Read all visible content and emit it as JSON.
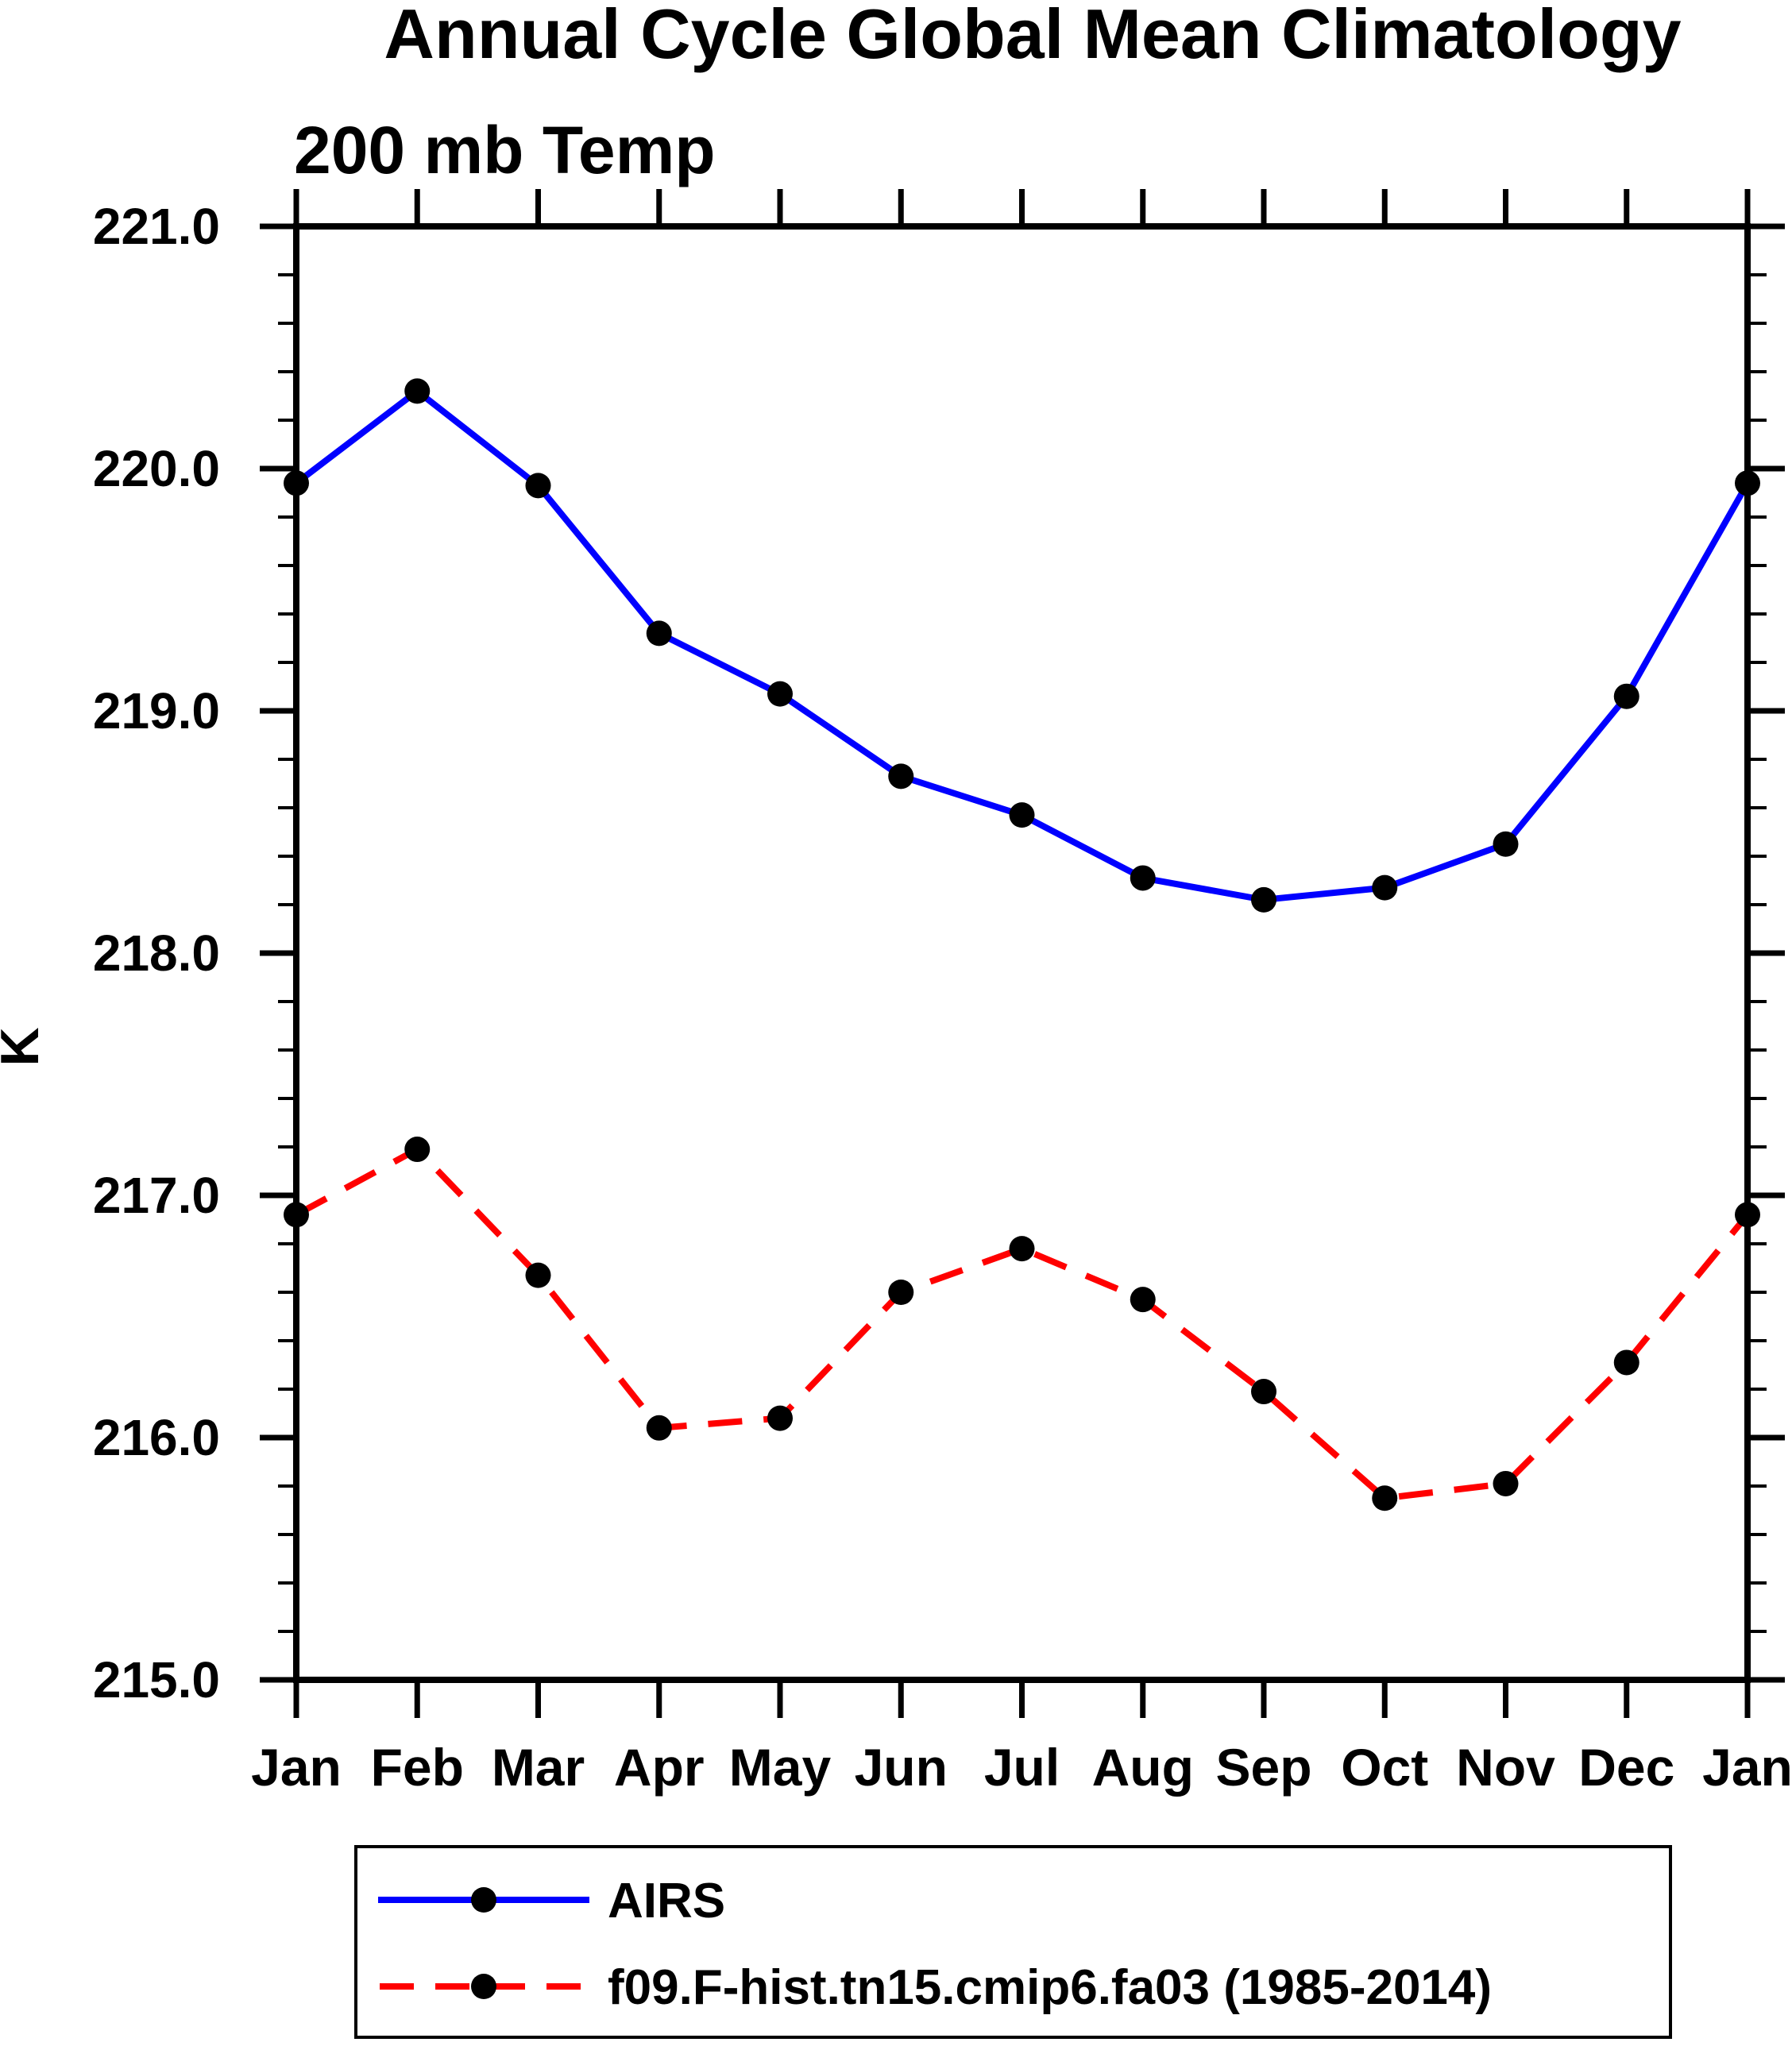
{
  "chart_data": {
    "type": "line",
    "title": "Annual Cycle Global Mean Climatology",
    "subtitle": "200 mb Temp",
    "ylabel": "K",
    "categories": [
      "Jan",
      "Feb",
      "Mar",
      "Apr",
      "May",
      "Jun",
      "Jul",
      "Aug",
      "Sep",
      "Oct",
      "Nov",
      "Dec",
      "Jan"
    ],
    "ylim": [
      215.0,
      221.0
    ],
    "y_major_tick_step": 1.0,
    "y_minor_tick_step": 0.2,
    "y_tick_labels": [
      "221.0",
      "220.0",
      "219.0",
      "218.0",
      "217.0",
      "216.0",
      "215.0"
    ],
    "grid": false,
    "legend_position": "bottom",
    "series": [
      {
        "name": "AIRS",
        "color": "#0000ff",
        "line_style": "solid",
        "marker": "black-circle",
        "values": [
          219.94,
          220.32,
          219.93,
          219.32,
          219.07,
          218.73,
          218.57,
          218.31,
          218.22,
          218.27,
          218.45,
          219.06,
          219.94
        ]
      },
      {
        "name": "f09.F-hist.tn15.cmip6.fa03 (1985-2014)",
        "color": "#ff0000",
        "line_style": "dashed",
        "marker": "black-circle",
        "values": [
          216.92,
          217.19,
          216.67,
          216.04,
          216.08,
          216.6,
          216.78,
          216.57,
          216.19,
          215.75,
          215.81,
          216.31,
          216.92
        ]
      }
    ]
  }
}
